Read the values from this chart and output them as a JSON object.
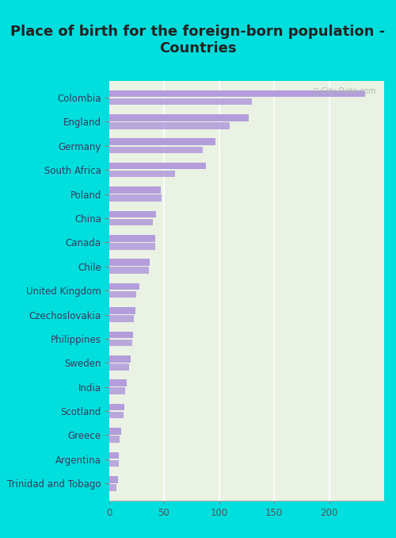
{
  "title": "Place of birth for the foreign-born population -\nCountries",
  "categories": [
    "Colombia",
    "England",
    "Germany",
    "South Africa",
    "Poland",
    "China",
    "Canada",
    "Chile",
    "United Kingdom",
    "Czechoslovakia",
    "Philippines",
    "Sweden",
    "India",
    "Scotland",
    "Greece",
    "Argentina",
    "Trinidad and Tobago"
  ],
  "bar1_values": [
    233,
    127,
    97,
    88,
    47,
    43,
    42,
    37,
    28,
    24,
    22,
    20,
    16,
    14,
    11,
    9,
    8
  ],
  "bar2_values": [
    130,
    110,
    85,
    60,
    48,
    40,
    42,
    36,
    25,
    23,
    21,
    18,
    15,
    13,
    10,
    9,
    7
  ],
  "bar_color": "#b39ddb",
  "background_color": "#eaf2e3",
  "outer_bg": "#00dede",
  "xlim": [
    0,
    250
  ],
  "xticks": [
    0,
    50,
    100,
    150,
    200
  ],
  "title_fontsize": 13,
  "label_fontsize": 8.5,
  "tick_fontsize": 8.5
}
